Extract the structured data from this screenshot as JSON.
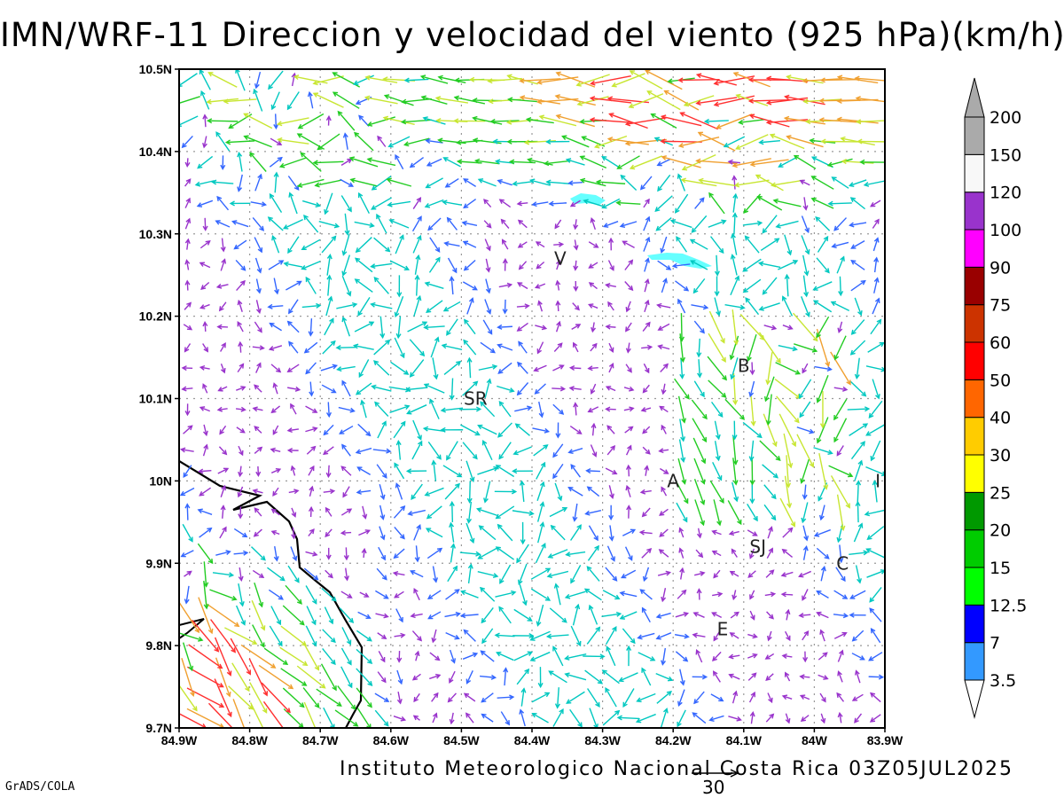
{
  "title": "IMN/WRF-11 Direccion y velocidad del viento (925 hPa)(km/h)",
  "footer": "Instituto Meteorologico Nacional Costa Rica 03Z05JUL2025",
  "credit": "GrADS/COLA",
  "reference_vector_label": "30",
  "map": {
    "lon_range": [
      -84.9,
      -83.9
    ],
    "lat_range": [
      9.7,
      10.5
    ],
    "x_ticks": [
      "84.9W",
      "84.8W",
      "84.7W",
      "84.6W",
      "84.5W",
      "84.4W",
      "84.3W",
      "84.2W",
      "84.1W",
      "84W",
      "83.9W"
    ],
    "y_ticks": [
      "9.7N",
      "9.8N",
      "9.9N",
      "10N",
      "10.1N",
      "10.2N",
      "10.3N",
      "10.4N",
      "10.5N"
    ],
    "grid": "dotted every 0.1 degree",
    "places": [
      {
        "label": "V",
        "lon": -84.36,
        "lat": 10.27
      },
      {
        "label": "B",
        "lon": -84.1,
        "lat": 10.14
      },
      {
        "label": "SR",
        "lon": -84.48,
        "lat": 10.1
      },
      {
        "label": "A",
        "lon": -84.2,
        "lat": 10.0
      },
      {
        "label": "I",
        "lon": -83.91,
        "lat": 10.0
      },
      {
        "label": "SJ",
        "lon": -84.08,
        "lat": 9.92
      },
      {
        "label": "C",
        "lon": -83.96,
        "lat": 9.9
      },
      {
        "label": "E",
        "lon": -84.13,
        "lat": 9.82
      }
    ],
    "lakes": [
      {
        "name": "laguna-norte",
        "lon": -84.34,
        "lat": 10.35
      },
      {
        "name": "lago-arenal",
        "lon": -84.17,
        "lat": 10.27
      }
    ]
  },
  "colorbar": {
    "levels": [
      "3.5",
      "7",
      "12.5",
      "15",
      "20",
      "25",
      "30",
      "40",
      "50",
      "60",
      "75",
      "90",
      "100",
      "120",
      "150",
      "200"
    ],
    "colors": [
      "#66ffff",
      "#3399ff",
      "#0000ff",
      "#00ff00",
      "#00cc00",
      "#009900",
      "#ffff00",
      "#ffcc00",
      "#ff6600",
      "#ff0000",
      "#cc3300",
      "#990000",
      "#ff00ff",
      "#9933cc",
      "#f8f8f8",
      "#aaaaaa"
    ]
  },
  "wind_colors": {
    "weak": "#9933cc",
    "light": "#3366ff",
    "moderate": "#00c8c0",
    "fresh": "#22cc22",
    "strong": "#c8e632",
    "very_strong": "#f0a030",
    "extreme": "#ff3030"
  }
}
